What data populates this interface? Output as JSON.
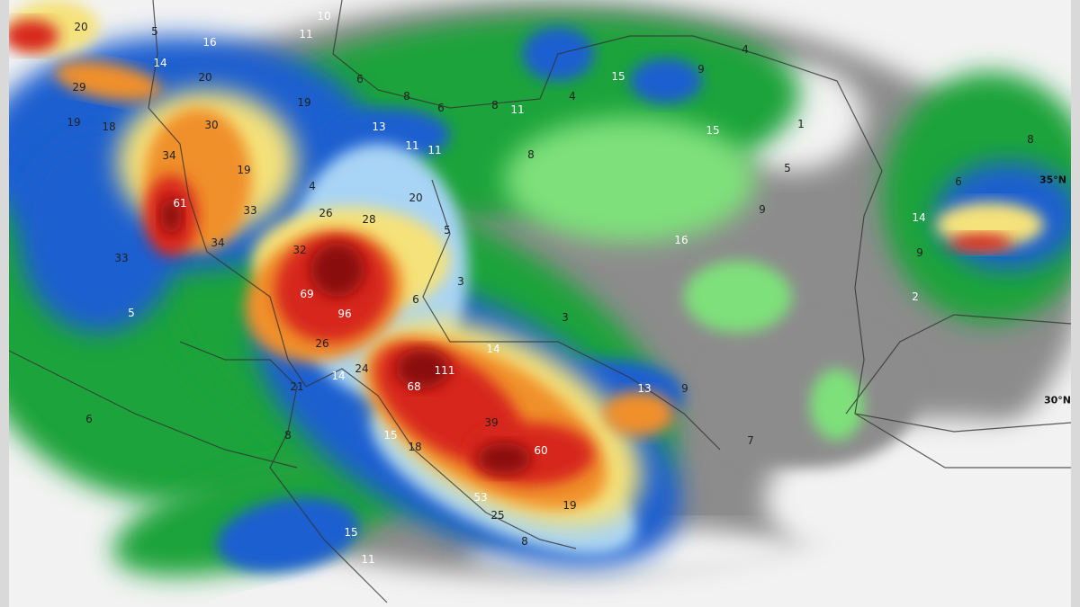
{
  "map": {
    "type": "accumulated precipitation",
    "colors": {
      "none": "#f2f2f2",
      "trace_gray": "#8c8c8c",
      "light_green": "#7ee07a",
      "green": "#1aa33a",
      "light_blue": "#a8d4f5",
      "blue": "#1e5fd0",
      "yellow": "#f5e27a",
      "orange": "#f0902a",
      "red": "#d7261c",
      "dark_red": "#8a1010"
    },
    "latitude_labels": [
      "35°N",
      "30°N"
    ],
    "value_labels": [
      "20",
      "10",
      "5",
      "16",
      "11",
      "14",
      "20",
      "29",
      "6",
      "8",
      "6",
      "8",
      "11",
      "4",
      "15",
      "9",
      "4",
      "19",
      "30",
      "19",
      "18",
      "13",
      "11",
      "11",
      "8",
      "15",
      "1",
      "8",
      "34",
      "19",
      "5",
      "6",
      "4",
      "20",
      "61",
      "33",
      "26",
      "28",
      "9",
      "14",
      "5",
      "16",
      "34",
      "32",
      "9",
      "33",
      "3",
      "69",
      "6",
      "2",
      "96",
      "5",
      "3",
      "26",
      "14",
      "111",
      "24",
      "14",
      "21",
      "68",
      "13",
      "9",
      "6",
      "39",
      "8",
      "15",
      "18",
      "60",
      "7",
      "53",
      "19",
      "25",
      "15",
      "8",
      "11"
    ]
  }
}
